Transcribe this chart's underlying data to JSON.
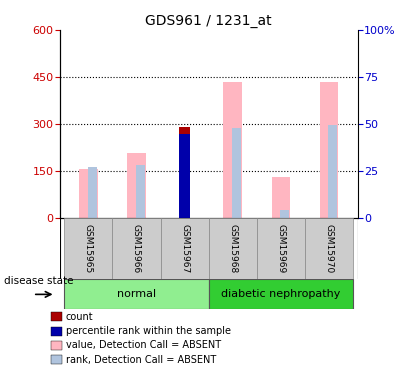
{
  "title": "GDS961 / 1231_at",
  "samples": [
    "GSM15965",
    "GSM15966",
    "GSM15967",
    "GSM15968",
    "GSM15969",
    "GSM15970"
  ],
  "value_absent": [
    155,
    205,
    null,
    435,
    130,
    435
  ],
  "rank_absent": [
    162,
    168,
    null,
    285,
    25,
    295
  ],
  "count_value": [
    null,
    null,
    290,
    null,
    null,
    null
  ],
  "percentile_rank_value": [
    null,
    null,
    268,
    null,
    null,
    null
  ],
  "left_ylim": [
    0,
    600
  ],
  "right_ylim": [
    0,
    100
  ],
  "left_yticks": [
    0,
    150,
    300,
    450,
    600
  ],
  "right_yticks": [
    0,
    25,
    50,
    75,
    100
  ],
  "left_ylabel_color": "#cc0000",
  "right_ylabel_color": "#0000cc",
  "colors": {
    "count": "#aa0000",
    "percentile_rank": "#0000aa",
    "value_absent": "#ffb6c1",
    "rank_absent": "#b0c4de"
  },
  "legend_items": [
    {
      "label": "count",
      "color": "#aa0000"
    },
    {
      "label": "percentile rank within the sample",
      "color": "#0000aa"
    },
    {
      "label": "value, Detection Call = ABSENT",
      "color": "#ffb6c1"
    },
    {
      "label": "rank, Detection Call = ABSENT",
      "color": "#b0c4de"
    }
  ],
  "group_row_color_normal": "#90ee90",
  "group_row_color_diabetic": "#32cd32",
  "background_color": "#ffffff"
}
